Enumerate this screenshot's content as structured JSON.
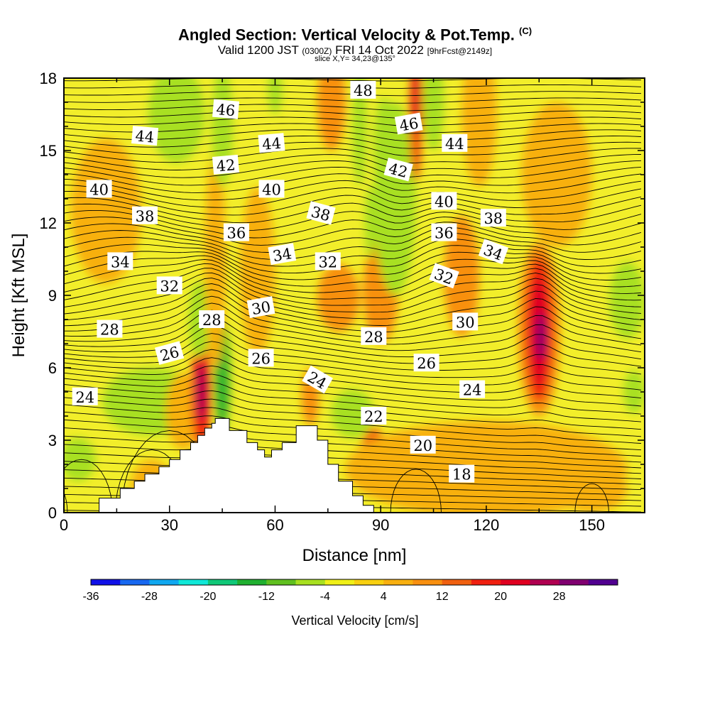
{
  "header": {
    "title": "Angled Section: Vertical Velocity & Pot.Temp.",
    "title_tag": "(C)",
    "valid_prefix": "Valid 1200 JST",
    "valid_zulu": "(0300Z)",
    "valid_date": "FRI 14 Oct 2022",
    "valid_fcst": "[9hrFcst@2149z]",
    "slice": "slice X,Y= 34,23@135°"
  },
  "chart_data": {
    "type": "heatmap",
    "xlabel": "Distance [nm]",
    "ylabel": "Height [Kft MSL]",
    "xlim": [
      0,
      165
    ],
    "ylim": [
      0,
      18
    ],
    "x_ticks": [
      0,
      30,
      60,
      90,
      120,
      150
    ],
    "y_ticks": [
      0,
      3,
      6,
      9,
      12,
      15,
      18
    ],
    "grid": false,
    "colorbar": {
      "label": "Vertical Velocity [cm/s]",
      "tick_labels": [
        "-36",
        "-28",
        "-20",
        "-12",
        "-4",
        "4",
        "12",
        "20",
        "28"
      ],
      "colors": [
        "#1010e8",
        "#1868f0",
        "#10a8f0",
        "#10e8d8",
        "#10c878",
        "#20b030",
        "#60c020",
        "#a8e020",
        "#f0f018",
        "#f8d010",
        "#f8b010",
        "#f89010",
        "#f06010",
        "#f02010",
        "#e00020",
        "#b00050",
        "#800070",
        "#500090"
      ]
    },
    "fill_background": "#f2ee2a",
    "terrain_color": "#ffffff",
    "terrain_profile": {
      "x": [
        0,
        10,
        10,
        16,
        16,
        20,
        20,
        23,
        23,
        27,
        27,
        30,
        30,
        33,
        33,
        36,
        36,
        38,
        38,
        40,
        40,
        42,
        42,
        43,
        43,
        45,
        45,
        47,
        47,
        52,
        52,
        55,
        55,
        57,
        57,
        59,
        59,
        62,
        62,
        66,
        66,
        72,
        72,
        75,
        75,
        78,
        78,
        82,
        82,
        85,
        85,
        88,
        88,
        165
      ],
      "height_kft": [
        0,
        0,
        0.6,
        0.6,
        1.0,
        1.0,
        1.3,
        1.3,
        1.6,
        1.6,
        1.9,
        1.9,
        2.2,
        2.2,
        2.6,
        2.6,
        2.9,
        2.9,
        3.2,
        3.2,
        3.5,
        3.5,
        3.7,
        3.7,
        3.9,
        3.9,
        3.9,
        3.9,
        3.4,
        3.4,
        2.9,
        2.9,
        2.6,
        2.6,
        2.3,
        2.3,
        2.6,
        2.6,
        2.9,
        2.9,
        3.6,
        3.6,
        3.0,
        3.0,
        2.0,
        2.0,
        1.3,
        1.3,
        0.7,
        0.7,
        0.3,
        0.3,
        0,
        0
      ]
    },
    "shading_cells": [
      {
        "x": 4,
        "y": 2.2,
        "rx": 5,
        "ry": 0.9,
        "v": -8
      },
      {
        "x": 25,
        "y": 4.6,
        "rx": 14,
        "ry": 1.4,
        "v": -5
      },
      {
        "x": 12,
        "y": 12.5,
        "rx": 10,
        "ry": 3,
        "v": 5
      },
      {
        "x": 34,
        "y": 4.2,
        "rx": 5,
        "ry": 1.6,
        "v": 6
      },
      {
        "x": 39,
        "y": 5.0,
        "rx": 2.8,
        "ry": 2.4,
        "v": 18
      },
      {
        "x": 39,
        "y": 5.0,
        "rx": 1.5,
        "ry": 1.2,
        "v": 24
      },
      {
        "x": 45,
        "y": 5.6,
        "rx": 2.4,
        "ry": 2.4,
        "v": -10
      },
      {
        "x": 45,
        "y": 5.2,
        "rx": 1.2,
        "ry": 1.4,
        "v": -16
      },
      {
        "x": 38.5,
        "y": 8.0,
        "rx": 3,
        "ry": 1.6,
        "v": -7
      },
      {
        "x": 43,
        "y": 10.5,
        "rx": 3,
        "ry": 4.5,
        "v": 5
      },
      {
        "x": 55,
        "y": 10.0,
        "rx": 5,
        "ry": 3.5,
        "v": 6
      },
      {
        "x": 70,
        "y": 4.8,
        "rx": 2.5,
        "ry": 1.2,
        "v": 9
      },
      {
        "x": 78,
        "y": 8.9,
        "rx": 6,
        "ry": 1.4,
        "v": 8
      },
      {
        "x": 82,
        "y": 4.1,
        "rx": 6,
        "ry": 1.0,
        "v": -5
      },
      {
        "x": 88,
        "y": 2.1,
        "rx": 4,
        "ry": 1.4,
        "v": 12
      },
      {
        "x": 88,
        "y": 2.0,
        "rx": 1.8,
        "ry": 0.7,
        "v": 20
      },
      {
        "x": 90,
        "y": 9.2,
        "rx": 5,
        "ry": 2.2,
        "v": 9
      },
      {
        "x": 94,
        "y": 13.0,
        "rx": 6,
        "ry": 4,
        "v": -7
      },
      {
        "x": 91,
        "y": 15.2,
        "rx": 3,
        "ry": 2,
        "v": -5
      },
      {
        "x": 100,
        "y": 16.5,
        "rx": 2,
        "ry": 2.8,
        "v": 12
      },
      {
        "x": 100,
        "y": 17.2,
        "rx": 1,
        "ry": 1.6,
        "v": 20
      },
      {
        "x": 76,
        "y": 17.0,
        "rx": 4,
        "ry": 2,
        "v": 9
      },
      {
        "x": 84,
        "y": 16.0,
        "rx": 2,
        "ry": 2.5,
        "v": -6
      },
      {
        "x": 87,
        "y": 12.0,
        "rx": 1.5,
        "ry": 1.5,
        "v": -5
      },
      {
        "x": 32,
        "y": 16.5,
        "rx": 8,
        "ry": 2,
        "v": -7
      },
      {
        "x": 45,
        "y": 16.0,
        "rx": 3,
        "ry": 2.5,
        "v": -6
      },
      {
        "x": 60,
        "y": 17.5,
        "rx": 2,
        "ry": 1,
        "v": -6
      },
      {
        "x": 105,
        "y": 17.0,
        "rx": 3,
        "ry": 2,
        "v": -5
      },
      {
        "x": 118,
        "y": 16.5,
        "rx": 5,
        "ry": 3,
        "v": 6
      },
      {
        "x": 113,
        "y": 9.8,
        "rx": 5,
        "ry": 2.5,
        "v": 9
      },
      {
        "x": 140,
        "y": 14.0,
        "rx": 10,
        "ry": 3,
        "v": 5
      },
      {
        "x": 135,
        "y": 7.6,
        "rx": 6,
        "ry": 3.6,
        "v": 10
      },
      {
        "x": 135,
        "y": 7.6,
        "rx": 4,
        "ry": 3.0,
        "v": 16
      },
      {
        "x": 135,
        "y": 7.5,
        "rx": 2.6,
        "ry": 2.2,
        "v": 22
      },
      {
        "x": 135.5,
        "y": 7.3,
        "rx": 1.2,
        "ry": 1.0,
        "v": 28
      },
      {
        "x": 160,
        "y": 8.8,
        "rx": 5,
        "ry": 1.6,
        "v": -6
      },
      {
        "x": 162,
        "y": 5.0,
        "rx": 3,
        "ry": 0.9,
        "v": -5
      },
      {
        "x": 120,
        "y": 1.8,
        "rx": 40,
        "ry": 2,
        "v": 5
      },
      {
        "x": 150,
        "y": 1.0,
        "rx": 10,
        "ry": 1,
        "v": 7
      },
      {
        "x": 25,
        "y": 1.0,
        "rx": 6,
        "ry": 1.2,
        "v": 7
      }
    ],
    "contour_label_points": [
      {
        "label": "24",
        "x": 6,
        "y": 4.8,
        "angle": 0
      },
      {
        "label": "26",
        "x": 30,
        "y": 6.6,
        "angle": -15
      },
      {
        "label": "28",
        "x": 13,
        "y": 7.6,
        "angle": 0
      },
      {
        "label": "28",
        "x": 42,
        "y": 8.0,
        "angle": 0
      },
      {
        "label": "30",
        "x": 56,
        "y": 8.5,
        "angle": -10
      },
      {
        "label": "32",
        "x": 30,
        "y": 9.4,
        "angle": 0
      },
      {
        "label": "34",
        "x": 16,
        "y": 10.4,
        "angle": 0
      },
      {
        "label": "36",
        "x": 49,
        "y": 11.6,
        "angle": 0
      },
      {
        "label": "34",
        "x": 62,
        "y": 10.7,
        "angle": -10
      },
      {
        "label": "32",
        "x": 75,
        "y": 10.4,
        "angle": 0
      },
      {
        "label": "38",
        "x": 23,
        "y": 12.3,
        "angle": 0
      },
      {
        "label": "38",
        "x": 73,
        "y": 12.4,
        "angle": 15
      },
      {
        "label": "40",
        "x": 10,
        "y": 13.4,
        "angle": 0
      },
      {
        "label": "40",
        "x": 59,
        "y": 13.4,
        "angle": 0
      },
      {
        "label": "42",
        "x": 46,
        "y": 14.4,
        "angle": -5
      },
      {
        "label": "42",
        "x": 95,
        "y": 14.2,
        "angle": 15
      },
      {
        "label": "44",
        "x": 23,
        "y": 15.6,
        "angle": 5
      },
      {
        "label": "44",
        "x": 59,
        "y": 15.3,
        "angle": -5
      },
      {
        "label": "44",
        "x": 111,
        "y": 15.3,
        "angle": 0
      },
      {
        "label": "46",
        "x": 46,
        "y": 16.7,
        "angle": 5
      },
      {
        "label": "46",
        "x": 98,
        "y": 16.1,
        "angle": -10
      },
      {
        "label": "48",
        "x": 85,
        "y": 17.5,
        "angle": 0
      },
      {
        "label": "26",
        "x": 56,
        "y": 6.4,
        "angle": 0
      },
      {
        "label": "24",
        "x": 72,
        "y": 5.5,
        "angle": 30
      },
      {
        "label": "22",
        "x": 88,
        "y": 4.0,
        "angle": 0
      },
      {
        "label": "20",
        "x": 102,
        "y": 2.8,
        "angle": 0
      },
      {
        "label": "18",
        "x": 113,
        "y": 1.6,
        "angle": 0
      },
      {
        "label": "28",
        "x": 88,
        "y": 7.3,
        "angle": 0
      },
      {
        "label": "26",
        "x": 103,
        "y": 6.2,
        "angle": 0
      },
      {
        "label": "24",
        "x": 116,
        "y": 5.1,
        "angle": 0
      },
      {
        "label": "30",
        "x": 114,
        "y": 7.9,
        "angle": 0
      },
      {
        "label": "32",
        "x": 108,
        "y": 9.8,
        "angle": 20
      },
      {
        "label": "36",
        "x": 108,
        "y": 11.6,
        "angle": 0
      },
      {
        "label": "34",
        "x": 122,
        "y": 10.8,
        "angle": 20
      },
      {
        "label": "38",
        "x": 122,
        "y": 12.2,
        "angle": 0
      },
      {
        "label": "40",
        "x": 108,
        "y": 12.9,
        "angle": 0
      }
    ]
  }
}
